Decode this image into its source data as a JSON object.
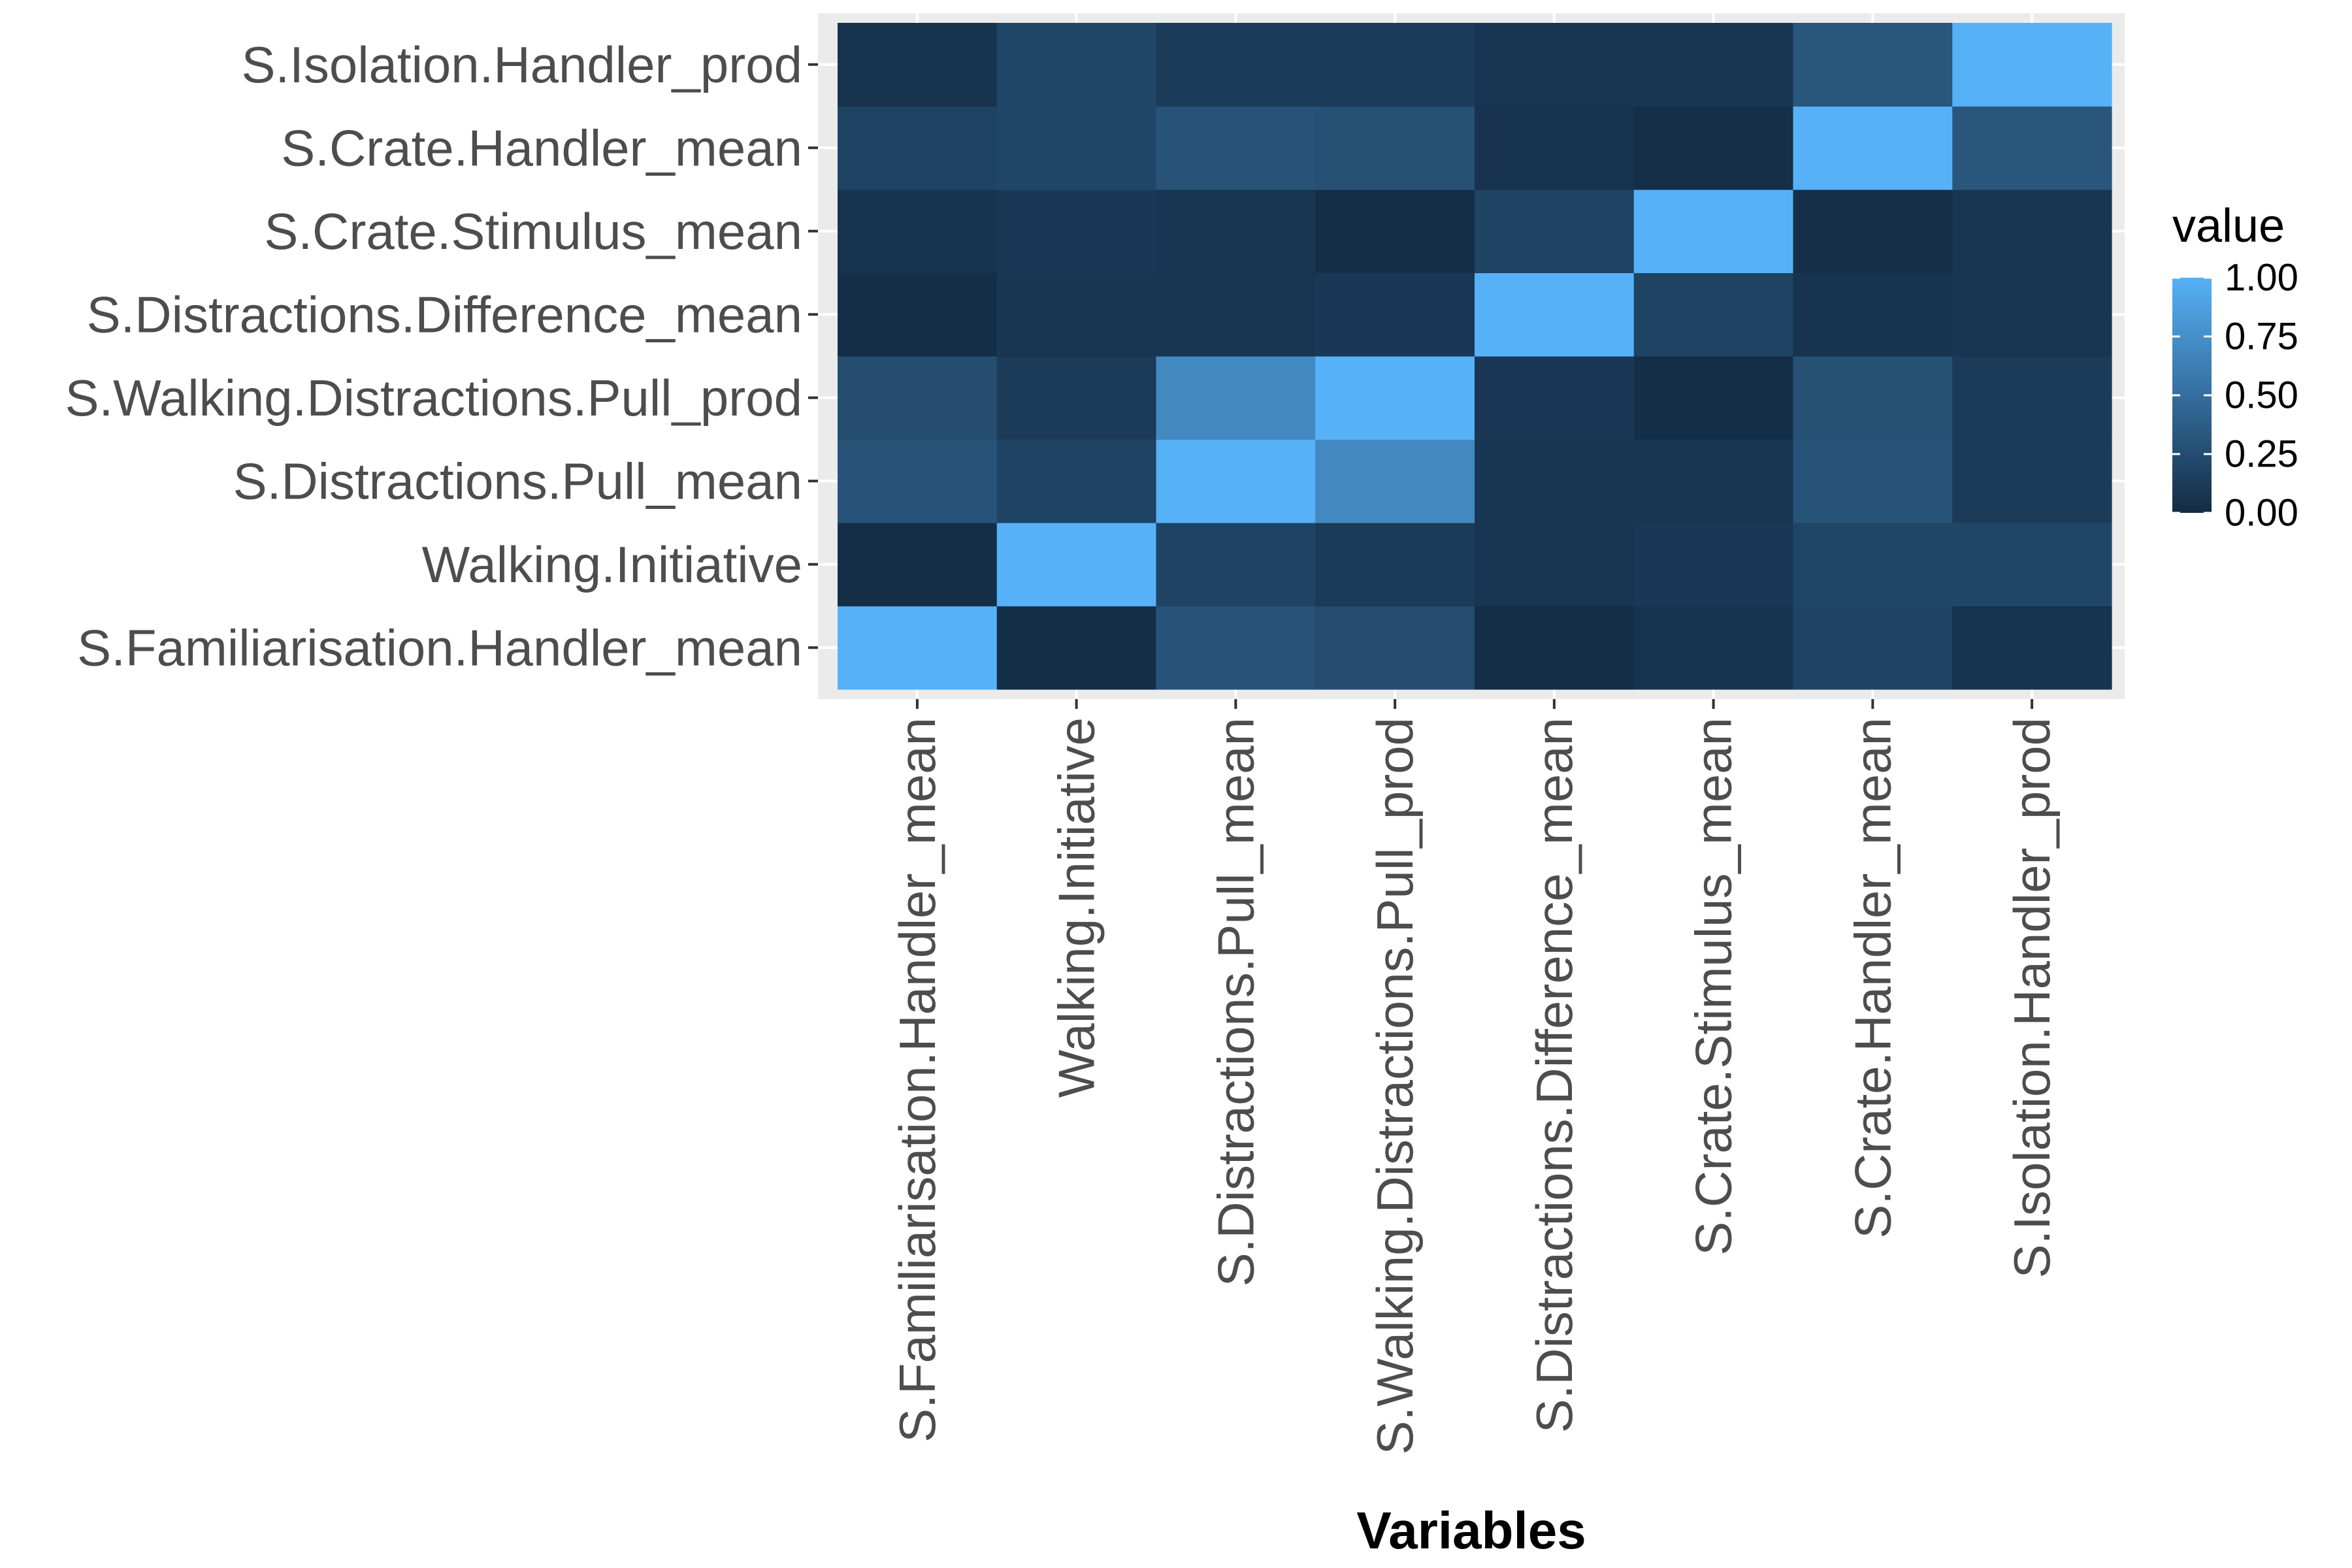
{
  "chart_data": {
    "type": "heatmap",
    "title": "",
    "xlabel": "Variables",
    "ylabel": "",
    "x_categories": [
      "S.Familiarisation.Handler_mean",
      "Walking.Initiative",
      "S.Distractions.Pull_mean",
      "S.Walking.Distractions.Pull_prod",
      "S.Distractions.Difference_mean",
      "S.Crate.Stimulus_mean",
      "S.Crate.Handler_mean",
      "S.Isolation.Handler_prod"
    ],
    "y_categories": [
      "S.Familiarisation.Handler_mean",
      "Walking.Initiative",
      "S.Distractions.Pull_mean",
      "S.Walking.Distractions.Pull_prod",
      "S.Distractions.Difference_mean",
      "S.Crate.Stimulus_mean",
      "S.Crate.Handler_mean",
      "S.Isolation.Handler_prod"
    ],
    "values": [
      [
        1.0,
        0.02,
        0.3,
        0.25,
        0.02,
        0.06,
        0.18,
        0.06
      ],
      [
        0.02,
        1.0,
        0.18,
        0.12,
        0.08,
        0.1,
        0.2,
        0.2
      ],
      [
        0.3,
        0.18,
        1.0,
        0.7,
        0.08,
        0.08,
        0.3,
        0.12
      ],
      [
        0.25,
        0.12,
        0.7,
        1.0,
        0.1,
        0.02,
        0.28,
        0.12
      ],
      [
        0.02,
        0.08,
        0.08,
        0.1,
        1.0,
        0.18,
        0.06,
        0.08
      ],
      [
        0.06,
        0.1,
        0.08,
        0.02,
        0.18,
        1.0,
        0.03,
        0.08
      ],
      [
        0.18,
        0.2,
        0.3,
        0.28,
        0.06,
        0.03,
        1.0,
        0.32
      ],
      [
        0.06,
        0.2,
        0.12,
        0.12,
        0.08,
        0.08,
        0.32,
        1.0
      ]
    ],
    "color_scale": {
      "low": "#132B43",
      "high": "#56B1F7",
      "limits": [
        0,
        1
      ]
    },
    "legend": {
      "title": "value",
      "position": "right",
      "ticks": [
        "0.00",
        "0.25",
        "0.50",
        "0.75",
        "1.00"
      ]
    },
    "panel_background": "#ebebeb",
    "grid": true
  }
}
